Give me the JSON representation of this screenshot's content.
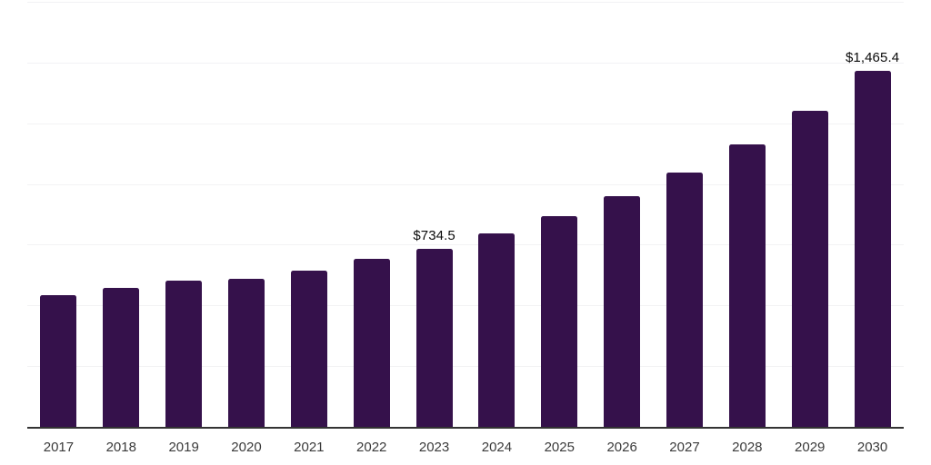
{
  "chart_data": {
    "type": "bar",
    "title": "",
    "xlabel": "",
    "ylabel": "",
    "categories": [
      "2017",
      "2018",
      "2019",
      "2020",
      "2021",
      "2022",
      "2023",
      "2024",
      "2025",
      "2026",
      "2027",
      "2028",
      "2029",
      "2030"
    ],
    "values": [
      542,
      572,
      602,
      610,
      643,
      692,
      734.5,
      797,
      868,
      950,
      1047,
      1163,
      1301,
      1465.4
    ],
    "data_labels": [
      null,
      null,
      null,
      null,
      null,
      null,
      "$734.5",
      null,
      null,
      null,
      null,
      null,
      null,
      "$1,465.4"
    ],
    "ylim": [
      0,
      1750
    ],
    "grid_step": 250,
    "grid": true,
    "y_tick_labels_visible": false,
    "legend_visible": false,
    "colors": {
      "bar": "#35114B",
      "axis_line": "#333333",
      "gridline": "#f2f2f4",
      "data_label": "#0b0b0b",
      "tick_label": "#3a3a3a",
      "background": "#ffffff"
    }
  }
}
